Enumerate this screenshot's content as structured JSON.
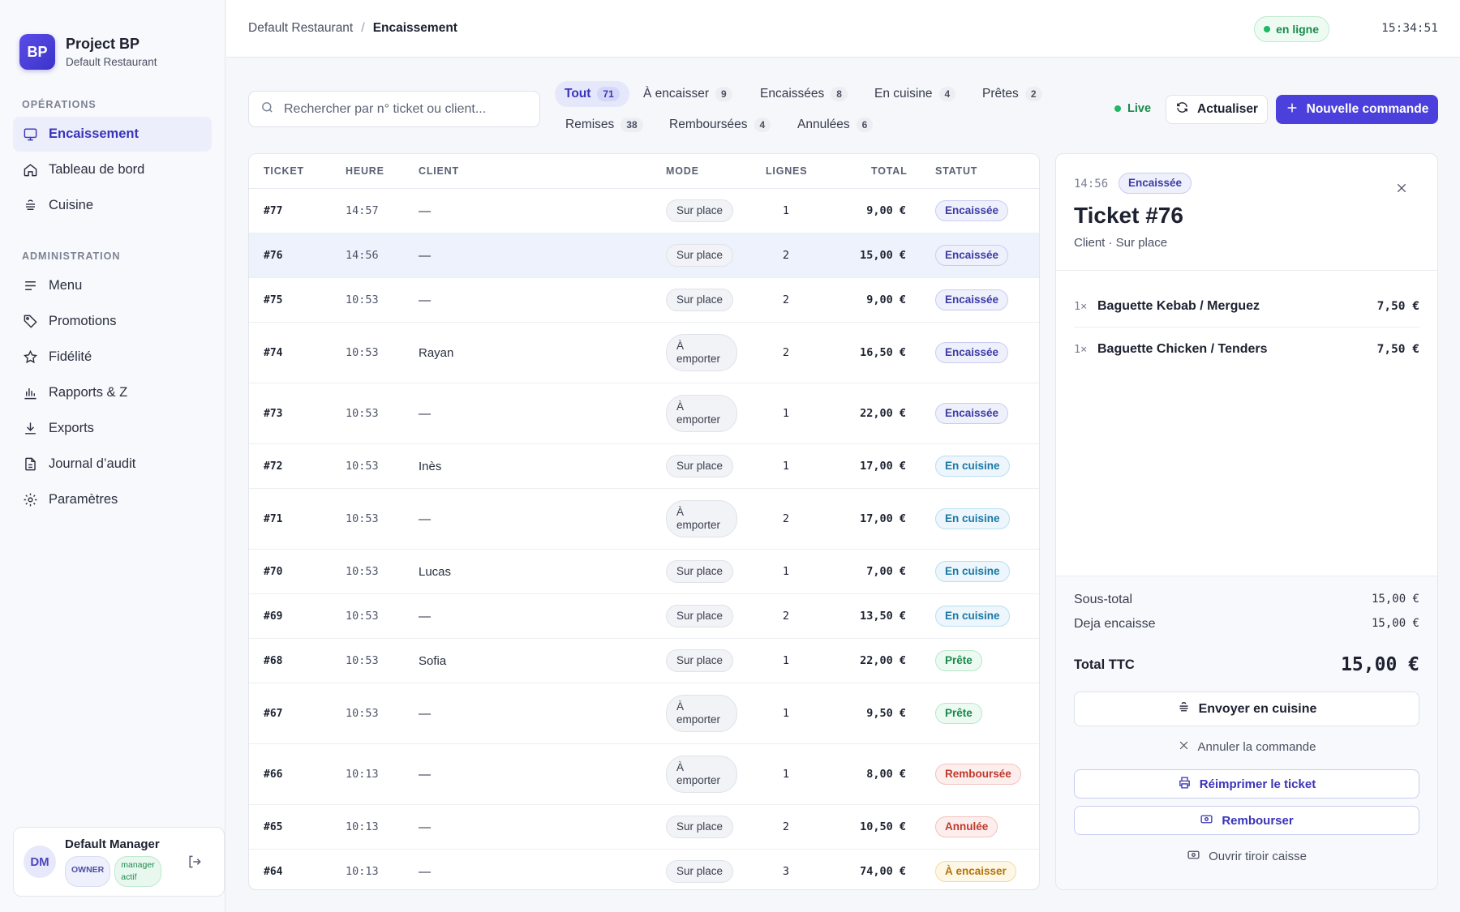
{
  "brand": {
    "logo": "BP",
    "title": "Project BP",
    "subtitle": "Default Restaurant"
  },
  "sidebar": {
    "sections": [
      {
        "label": "OPÉRATIONS",
        "items": [
          {
            "label": "Encaissement",
            "icon": "monitor-icon",
            "active": true
          },
          {
            "label": "Tableau de bord",
            "icon": "home-icon"
          },
          {
            "label": "Cuisine",
            "icon": "cooking-pot-icon"
          }
        ]
      },
      {
        "label": "ADMINISTRATION",
        "items": [
          {
            "label": "Menu",
            "icon": "lines-icon"
          },
          {
            "label": "Promotions",
            "icon": "tag-icon"
          },
          {
            "label": "Fidélité",
            "icon": "star-icon"
          },
          {
            "label": "Rapports & Z",
            "icon": "bar-chart-icon"
          },
          {
            "label": "Exports",
            "icon": "download-icon"
          },
          {
            "label": "Journal d’audit",
            "icon": "file-text-icon"
          },
          {
            "label": "Paramètres",
            "icon": "gear-icon"
          }
        ]
      }
    ],
    "user": {
      "initials": "DM",
      "name": "Default Manager",
      "role": "OWNER",
      "status_line1": "manager",
      "status_line2": "actif"
    }
  },
  "header": {
    "breadcrumb_root": "Default Restaurant",
    "breadcrumb_sep": "/",
    "breadcrumb_current": "Encaissement",
    "connection_status": "en ligne",
    "clock": "15:34:51"
  },
  "toolbar": {
    "search_placeholder": "Rechercher par n° ticket ou client...",
    "filters": [
      {
        "label": "Tout",
        "count": "71",
        "active": true
      },
      {
        "label": "À encaisser",
        "count": "9"
      },
      {
        "label": "Encaissées",
        "count": "8"
      },
      {
        "label": "En cuisine",
        "count": "4"
      },
      {
        "label": "Prêtes",
        "count": "2"
      },
      {
        "label": "Remises",
        "count": "38"
      },
      {
        "label": "Remboursées",
        "count": "4"
      },
      {
        "label": "Annulées",
        "count": "6"
      }
    ],
    "live_label": "Live",
    "refresh_label": "Actualiser",
    "new_order_label": "Nouvelle commande"
  },
  "table": {
    "columns": [
      "TICKET",
      "HEURE",
      "CLIENT",
      "MODE",
      "LIGNES",
      "TOTAL",
      "STATUT"
    ],
    "rows": [
      {
        "ticket": "#77",
        "time": "14:57",
        "client": "—",
        "mode": "Sur place",
        "lines": "1",
        "total": "9,00 €",
        "status": "Encaissée",
        "status_kind": "enc"
      },
      {
        "ticket": "#76",
        "time": "14:56",
        "client": "—",
        "mode": "Sur place",
        "lines": "2",
        "total": "15,00 €",
        "status": "Encaissée",
        "status_kind": "enc",
        "selected": true
      },
      {
        "ticket": "#75",
        "time": "10:53",
        "client": "—",
        "mode": "Sur place",
        "lines": "2",
        "total": "9,00 €",
        "status": "Encaissée",
        "status_kind": "enc"
      },
      {
        "ticket": "#74",
        "time": "10:53",
        "client": "Rayan",
        "mode": "À emporter",
        "lines": "2",
        "total": "16,50 €",
        "status": "Encaissée",
        "status_kind": "enc"
      },
      {
        "ticket": "#73",
        "time": "10:53",
        "client": "—",
        "mode": "À emporter",
        "lines": "1",
        "total": "22,00 €",
        "status": "Encaissée",
        "status_kind": "enc"
      },
      {
        "ticket": "#72",
        "time": "10:53",
        "client": "Inès",
        "mode": "Sur place",
        "lines": "1",
        "total": "17,00 €",
        "status": "En cuisine",
        "status_kind": "cui"
      },
      {
        "ticket": "#71",
        "time": "10:53",
        "client": "—",
        "mode": "À emporter",
        "lines": "2",
        "total": "17,00 €",
        "status": "En cuisine",
        "status_kind": "cui"
      },
      {
        "ticket": "#70",
        "time": "10:53",
        "client": "Lucas",
        "mode": "Sur place",
        "lines": "1",
        "total": "7,00 €",
        "status": "En cuisine",
        "status_kind": "cui"
      },
      {
        "ticket": "#69",
        "time": "10:53",
        "client": "—",
        "mode": "Sur place",
        "lines": "2",
        "total": "13,50 €",
        "status": "En cuisine",
        "status_kind": "cui"
      },
      {
        "ticket": "#68",
        "time": "10:53",
        "client": "Sofia",
        "mode": "Sur place",
        "lines": "1",
        "total": "22,00 €",
        "status": "Prête",
        "status_kind": "pre"
      },
      {
        "ticket": "#67",
        "time": "10:53",
        "client": "—",
        "mode": "À emporter",
        "lines": "1",
        "total": "9,50 €",
        "status": "Prête",
        "status_kind": "pre"
      },
      {
        "ticket": "#66",
        "time": "10:13",
        "client": "—",
        "mode": "À emporter",
        "lines": "1",
        "total": "8,00 €",
        "status": "Remboursée",
        "status_kind": "rem"
      },
      {
        "ticket": "#65",
        "time": "10:13",
        "client": "—",
        "mode": "Sur place",
        "lines": "2",
        "total": "10,50 €",
        "status": "Annulée",
        "status_kind": "ann"
      },
      {
        "ticket": "#64",
        "time": "10:13",
        "client": "—",
        "mode": "Sur place",
        "lines": "3",
        "total": "74,00 €",
        "status": "À encaisser",
        "status_kind": "aen"
      }
    ]
  },
  "detail": {
    "time": "14:56",
    "status": "Encaissée",
    "title": "Ticket #76",
    "subtitle": "Client · Sur place",
    "items": [
      {
        "qty": "1×",
        "name": "Baguette Kebab / Merguez",
        "price": "7,50 €"
      },
      {
        "qty": "1×",
        "name": "Baguette Chicken / Tenders",
        "price": "7,50 €"
      }
    ],
    "subtotal_label": "Sous-total",
    "subtotal": "15,00 €",
    "paid_label": "Deja encaisse",
    "paid": "15,00 €",
    "total_label": "Total TTC",
    "total": "15,00 €",
    "send_kitchen_label": "Envoyer en cuisine",
    "cancel_label": "Annuler la commande",
    "reprint_label": "Réimprimer le ticket",
    "refund_label": "Rembourser",
    "drawer_label": "Ouvrir tiroir caisse"
  }
}
